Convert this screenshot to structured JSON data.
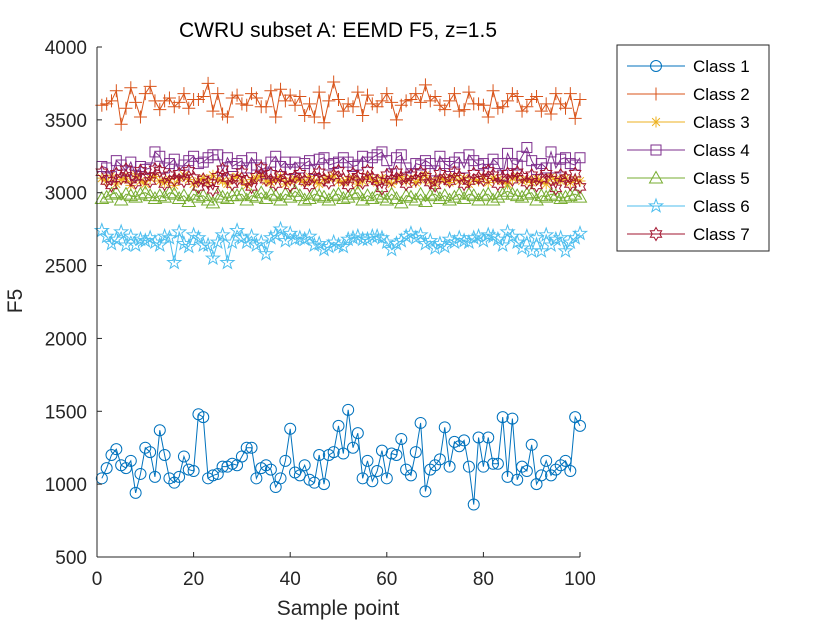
{
  "chart_data": {
    "type": "line",
    "title": "CWRU subset A: EEMD F5, z=1.5",
    "xlabel": "Sample point",
    "ylabel": "F5",
    "xlim": [
      0,
      100
    ],
    "ylim": [
      500,
      4000
    ],
    "xticks": [
      "0",
      "20",
      "40",
      "60",
      "80",
      "100"
    ],
    "yticks": [
      "500",
      "1000",
      "1500",
      "2000",
      "2500",
      "3000",
      "3500",
      "4000"
    ],
    "grid": false,
    "legend": "outside-right",
    "x": [
      1,
      2,
      3,
      4,
      5,
      6,
      7,
      8,
      9,
      10,
      11,
      12,
      13,
      14,
      15,
      16,
      17,
      18,
      19,
      20,
      21,
      22,
      23,
      24,
      25,
      26,
      27,
      28,
      29,
      30,
      31,
      32,
      33,
      34,
      35,
      36,
      37,
      38,
      39,
      40,
      41,
      42,
      43,
      44,
      45,
      46,
      47,
      48,
      49,
      50,
      51,
      52,
      53,
      54,
      55,
      56,
      57,
      58,
      59,
      60,
      61,
      62,
      63,
      64,
      65,
      66,
      67,
      68,
      69,
      70,
      71,
      72,
      73,
      74,
      75,
      76,
      77,
      78,
      79,
      80,
      81,
      82,
      83,
      84,
      85,
      86,
      87,
      88,
      89,
      90,
      91,
      92,
      93,
      94,
      95,
      96,
      97,
      98,
      99,
      100
    ],
    "series": [
      {
        "name": "Class 1",
        "color": "#0072BD",
        "marker": "circle",
        "values": [
          1040,
          1110,
          1200,
          1240,
          1130,
          1110,
          1160,
          940,
          1070,
          1250,
          1220,
          1050,
          1370,
          1200,
          1040,
          1010,
          1050,
          1190,
          1100,
          1090,
          1480,
          1460,
          1040,
          1060,
          1070,
          1120,
          1120,
          1140,
          1130,
          1190,
          1250,
          1250,
          1040,
          1110,
          1130,
          1100,
          980,
          1040,
          1160,
          1380,
          1080,
          1060,
          1130,
          1030,
          1010,
          1200,
          1000,
          1200,
          1220,
          1400,
          1210,
          1510,
          1250,
          1350,
          1040,
          1160,
          1020,
          1090,
          1230,
          1040,
          1210,
          1200,
          1310,
          1100,
          1060,
          1220,
          1420,
          950,
          1100,
          1130,
          1170,
          1390,
          1120,
          1290,
          1260,
          1300,
          1120,
          860,
          1320,
          1120,
          1320,
          1140,
          1140,
          1460,
          1050,
          1450,
          1030,
          1120,
          1090,
          1270,
          1000,
          1060,
          1160,
          1060,
          1100,
          1130,
          1160,
          1090,
          1460,
          1400
        ]
      },
      {
        "name": "Class 2",
        "color": "#D95319",
        "marker": "plus",
        "values": [
          3600,
          3610,
          3630,
          3700,
          3470,
          3580,
          3720,
          3620,
          3520,
          3680,
          3730,
          3630,
          3570,
          3630,
          3650,
          3590,
          3620,
          3680,
          3580,
          3640,
          3640,
          3660,
          3750,
          3560,
          3680,
          3540,
          3520,
          3650,
          3670,
          3610,
          3600,
          3680,
          3650,
          3590,
          3590,
          3700,
          3520,
          3710,
          3630,
          3670,
          3600,
          3660,
          3530,
          3610,
          3520,
          3690,
          3480,
          3630,
          3760,
          3640,
          3560,
          3610,
          3590,
          3690,
          3530,
          3670,
          3610,
          3590,
          3630,
          3680,
          3620,
          3500,
          3600,
          3630,
          3640,
          3680,
          3620,
          3740,
          3630,
          3660,
          3600,
          3570,
          3630,
          3680,
          3560,
          3570,
          3690,
          3610,
          3610,
          3600,
          3520,
          3700,
          3580,
          3590,
          3630,
          3680,
          3660,
          3560,
          3590,
          3640,
          3660,
          3560,
          3610,
          3540,
          3680,
          3610,
          3580,
          3680,
          3510,
          3640
        ]
      },
      {
        "name": "Class 3",
        "color": "#EDB120",
        "marker": "asterisk",
        "values": [
          3100,
          3080,
          3120,
          3060,
          3090,
          3100,
          3050,
          3130,
          3080,
          3060,
          3100,
          3110,
          3080,
          3070,
          3090,
          3050,
          3100,
          3120,
          3090,
          3060,
          3080,
          3100,
          3070,
          3120,
          3090,
          3080,
          3060,
          3100,
          3110,
          3080,
          3050,
          3090,
          3100,
          3120,
          3080,
          3070,
          3090,
          3110,
          3060,
          3080,
          3100,
          3090,
          3070,
          3110,
          3080,
          3060,
          3090,
          3100,
          3120,
          3080,
          3070,
          3090,
          3100,
          3060,
          3080,
          3110,
          3090,
          3070,
          3100,
          3080,
          3060,
          3090,
          3110,
          3080,
          3100,
          3070,
          3090,
          3120,
          3080,
          3060,
          3100,
          3090,
          3070,
          3110,
          3080,
          3100,
          3060,
          3090,
          3080,
          3110,
          3070,
          3100,
          3090,
          3080,
          3060,
          3100,
          3110,
          3080,
          3090,
          3070,
          3100,
          3080,
          3060,
          3110,
          3090,
          3080,
          3100,
          3070,
          3090,
          3080
        ]
      },
      {
        "name": "Class 4",
        "color": "#7E2F8E",
        "marker": "square",
        "values": [
          3180,
          3170,
          3110,
          3220,
          3190,
          3150,
          3210,
          3120,
          3180,
          3160,
          3170,
          3280,
          3250,
          3170,
          3200,
          3230,
          3150,
          3190,
          3220,
          3250,
          3200,
          3210,
          3240,
          3260,
          3260,
          3150,
          3240,
          3180,
          3200,
          3220,
          3170,
          3240,
          3190,
          3170,
          3130,
          3210,
          3250,
          3180,
          3210,
          3160,
          3210,
          3170,
          3200,
          3220,
          3160,
          3230,
          3240,
          3190,
          3200,
          3210,
          3240,
          3210,
          3180,
          3190,
          3250,
          3210,
          3240,
          3260,
          3280,
          3220,
          3130,
          3240,
          3260,
          3170,
          3130,
          3200,
          3190,
          3220,
          3200,
          3150,
          3250,
          3200,
          3180,
          3210,
          3240,
          3170,
          3260,
          3220,
          3190,
          3200,
          3160,
          3230,
          3200,
          3120,
          3270,
          3200,
          3190,
          3250,
          3310,
          3220,
          3160,
          3200,
          3170,
          3280,
          3170,
          3230,
          3240,
          3200,
          3190,
          3240
        ]
      },
      {
        "name": "Class 5",
        "color": "#77AC30",
        "marker": "triangle",
        "values": [
          2960,
          2970,
          2990,
          3000,
          2950,
          2990,
          2980,
          2970,
          2990,
          3000,
          2980,
          2960,
          2980,
          2970,
          3000,
          2990,
          2960,
          2980,
          2940,
          2990,
          2970,
          2980,
          2950,
          2930,
          2990,
          2970,
          2960,
          2980,
          2980,
          2990,
          2950,
          2980,
          2970,
          3000,
          2960,
          2990,
          2980,
          2950,
          2990,
          2970,
          3010,
          2980,
          2950,
          2960,
          2990,
          2980,
          2970,
          2950,
          2980,
          2990,
          2960,
          2970,
          2990,
          3000,
          2950,
          2980,
          2960,
          2990,
          2970,
          2950,
          2990,
          2960,
          2930,
          2980,
          2970,
          2950,
          2990,
          2940,
          2980,
          2990,
          2960,
          2980,
          2950,
          2970,
          2990,
          2960,
          2990,
          2980,
          2950,
          2980,
          2990,
          2950,
          2970,
          2990,
          3010,
          2990,
          2980,
          2970,
          2990,
          3000,
          2950,
          2980,
          2970,
          2990,
          2980,
          2960,
          2970,
          2980,
          2990,
          2970
        ]
      },
      {
        "name": "Class 6",
        "color": "#4DBEEE",
        "marker": "pentagram",
        "values": [
          2740,
          2700,
          2650,
          2680,
          2730,
          2640,
          2700,
          2640,
          2680,
          2670,
          2690,
          2660,
          2640,
          2700,
          2690,
          2520,
          2730,
          2650,
          2630,
          2710,
          2690,
          2640,
          2640,
          2550,
          2660,
          2710,
          2520,
          2660,
          2740,
          2690,
          2660,
          2700,
          2640,
          2660,
          2580,
          2690,
          2710,
          2750,
          2670,
          2720,
          2680,
          2690,
          2680,
          2700,
          2640,
          2650,
          2610,
          2630,
          2660,
          2640,
          2630,
          2680,
          2690,
          2700,
          2680,
          2680,
          2700,
          2700,
          2690,
          2660,
          2610,
          2650,
          2670,
          2700,
          2720,
          2690,
          2710,
          2650,
          2670,
          2620,
          2650,
          2630,
          2680,
          2660,
          2690,
          2670,
          2660,
          2690,
          2700,
          2670,
          2710,
          2700,
          2680,
          2640,
          2730,
          2700,
          2660,
          2620,
          2700,
          2600,
          2690,
          2600,
          2710,
          2640,
          2680,
          2690,
          2600,
          2660,
          2690,
          2720
        ]
      },
      {
        "name": "Class 7",
        "color": "#A2142F",
        "marker": "hexagram",
        "values": [
          3140,
          3080,
          3050,
          3130,
          3100,
          3160,
          3090,
          3070,
          3150,
          3110,
          3080,
          3160,
          3150,
          3060,
          3120,
          3090,
          3130,
          3080,
          3150,
          3100,
          3040,
          3090,
          3070,
          3020,
          3110,
          3160,
          3100,
          3060,
          3090,
          3140,
          3080,
          3040,
          3110,
          3170,
          3090,
          3130,
          3060,
          3120,
          3100,
          3050,
          3110,
          3130,
          3080,
          3050,
          3110,
          3140,
          3090,
          3070,
          3120,
          3150,
          3090,
          3050,
          3130,
          3110,
          3070,
          3150,
          3100,
          3080,
          3030,
          3120,
          3090,
          3140,
          3100,
          3060,
          3120,
          3090,
          3140,
          3110,
          3070,
          3050,
          3130,
          3100,
          3080,
          3140,
          3110,
          3060,
          3080,
          3130,
          3100,
          3090,
          3150,
          3120,
          3060,
          3100,
          3130,
          3090,
          3140,
          3110,
          3070,
          3120,
          3050,
          3100,
          3130,
          3090,
          3030,
          3120,
          3100,
          3060,
          3130,
          3040
        ]
      }
    ]
  }
}
